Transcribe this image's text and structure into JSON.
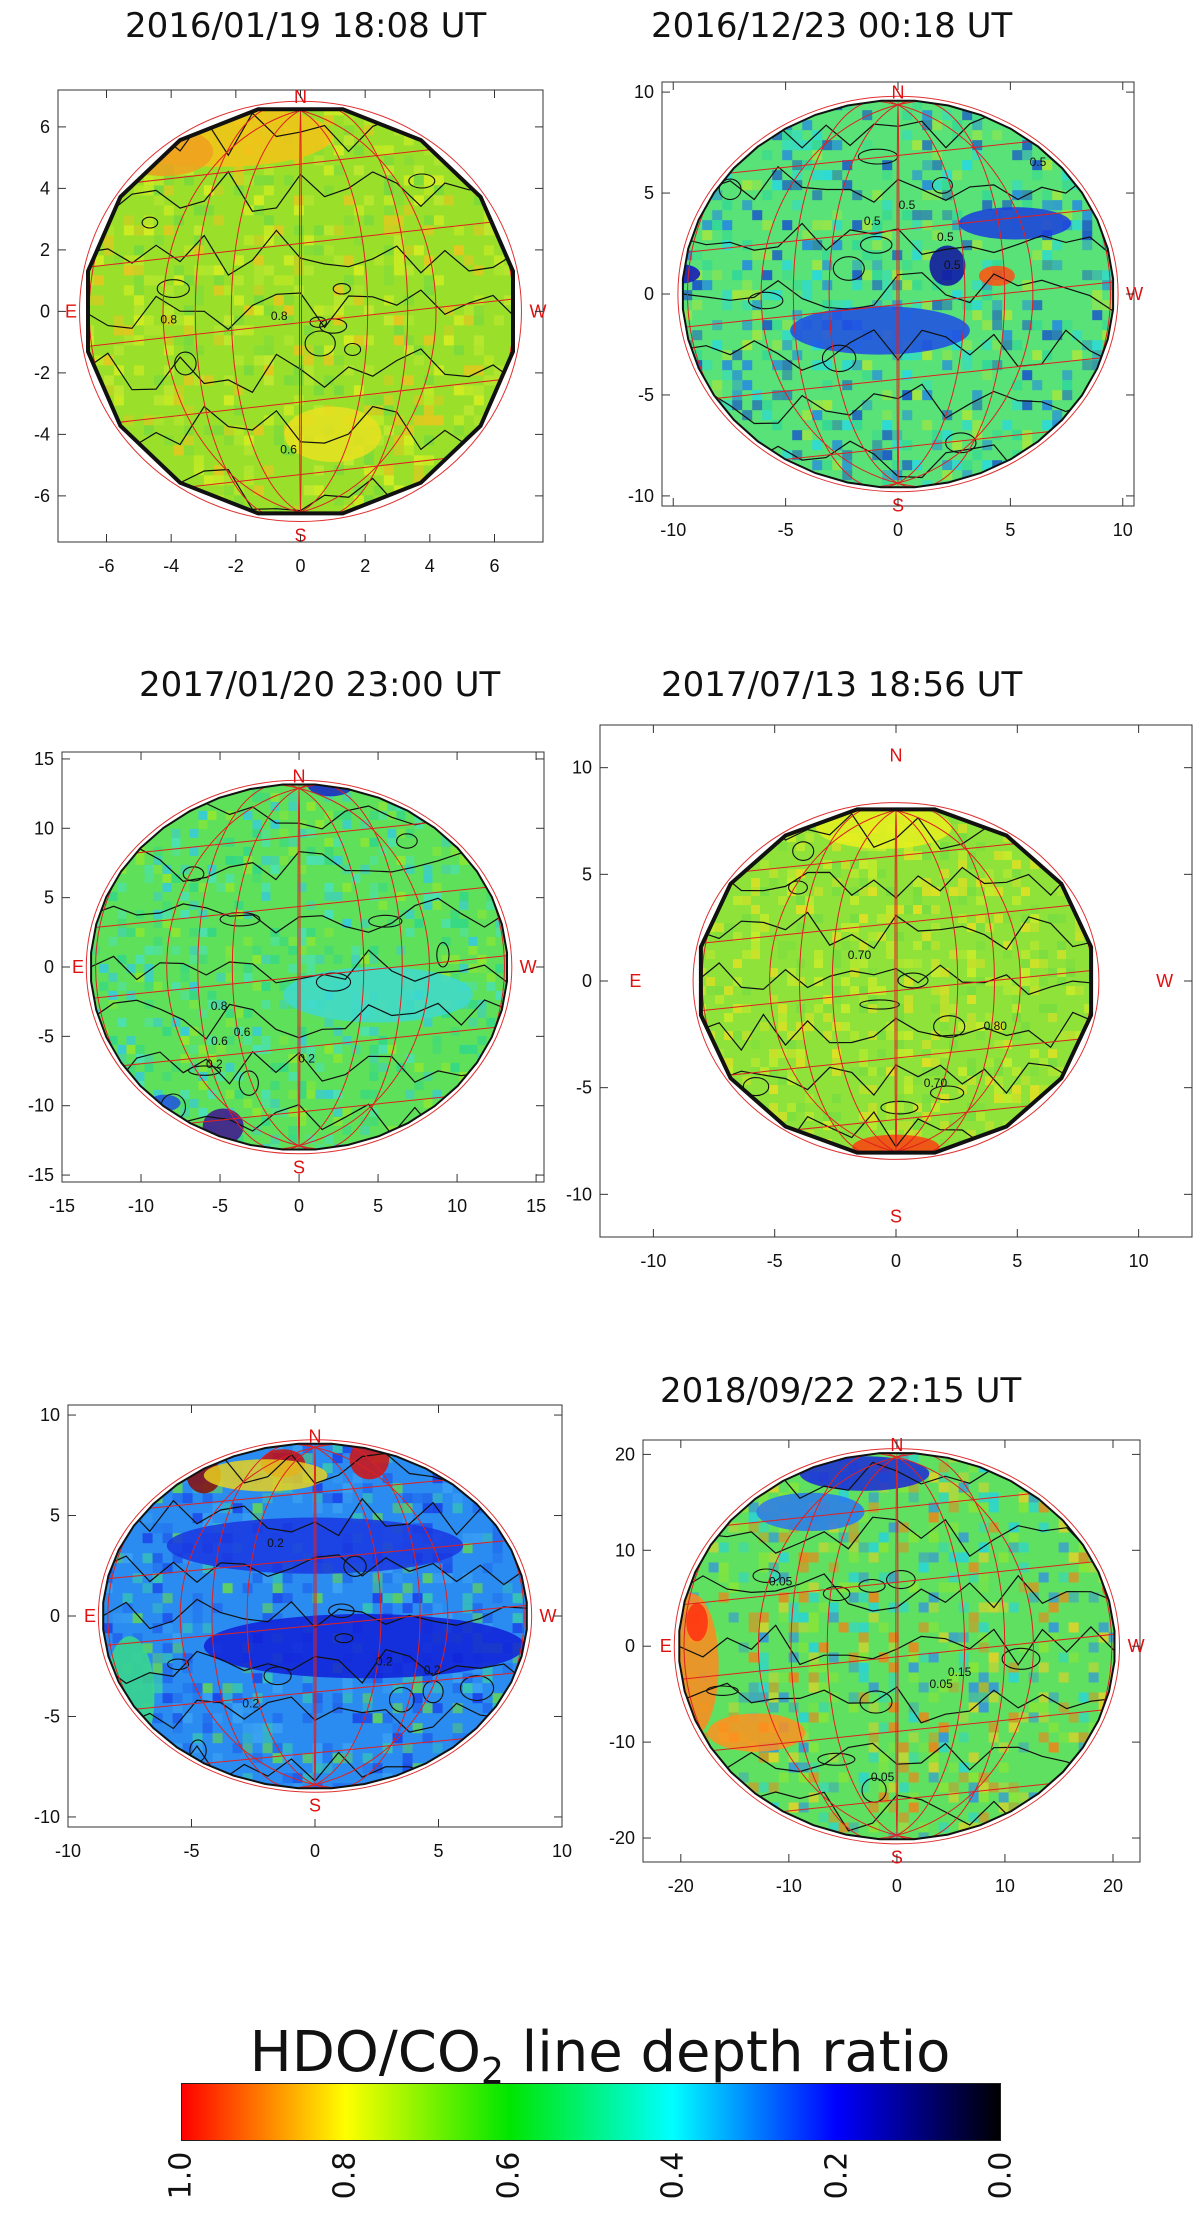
{
  "figure": {
    "colorbar": {
      "title_main": "HDO/CO",
      "title_sub": "2",
      "title_rest": " line depth ratio",
      "stops": [
        "#ff0000",
        "#ffff00",
        "#00e600",
        "#00ffff",
        "#0000ff",
        "#000000"
      ],
      "ticks": [
        "1.0",
        "0.8",
        "0.6",
        "0.4",
        "0.2",
        "0.0"
      ]
    },
    "panel_titles": {
      "p1": "2016/01/19  18:08 UT",
      "p2": "2016/12/23  00:18 UT",
      "p3": "2017/01/20  23:00 UT",
      "p4": "2017/07/13  18:56 UT",
      "p6": "2018/09/22  22:15 UT"
    }
  },
  "chart_data": [
    {
      "type": "heatmap",
      "title": "2016/01/19  18:08 UT",
      "xlim": [
        -7.5,
        7.5
      ],
      "ylim": [
        -7.5,
        7.2
      ],
      "xticks": [
        -6,
        -4,
        -2,
        0,
        2,
        4,
        6
      ],
      "yticks": [
        -6,
        -4,
        -2,
        0,
        2,
        4,
        6
      ],
      "disk_radius": 6.7,
      "base_color": "#9ae02b",
      "compass": {
        "N": "N",
        "S": "S",
        "E": "E",
        "W": "W"
      },
      "contour_labels": [
        "0.6",
        "0.8",
        "0.8"
      ]
    },
    {
      "type": "heatmap",
      "title": "2016/12/23  00:18 UT",
      "xlim": [
        -10.5,
        10.5
      ],
      "ylim": [
        -10.5,
        10.5
      ],
      "xticks": [
        -10,
        -5,
        0,
        5,
        10
      ],
      "yticks": [
        -10,
        -5,
        0,
        5,
        10
      ],
      "disk_radius": 9.6,
      "base_color": "#58e278",
      "compass": {
        "N": "N",
        "S": "S",
        "E": "",
        "W": "W"
      },
      "contour_labels": [
        "0.5",
        "0.5",
        "0.5",
        "0.5",
        "0.5"
      ]
    },
    {
      "type": "heatmap",
      "title": "2017/01/20  23:00 UT",
      "xlim": [
        -15,
        15.5
      ],
      "ylim": [
        -15.5,
        15.5
      ],
      "xticks": [
        -15,
        -10,
        -5,
        0,
        5,
        10,
        15
      ],
      "yticks": [
        -15,
        -10,
        -5,
        0,
        5,
        10,
        15
      ],
      "disk_radius": 13.2,
      "base_color": "#5fe05a",
      "compass": {
        "N": "N",
        "S": "S",
        "E": "E",
        "W": "W"
      },
      "contour_labels": [
        "0.2",
        "0.6",
        "0.8",
        "0.6",
        "0.2"
      ]
    },
    {
      "type": "heatmap",
      "title": "2017/07/13  18:56 UT",
      "xlim": [
        -12.2,
        12.2
      ],
      "ylim": [
        -12,
        12
      ],
      "xticks": [
        -10,
        -5,
        0,
        5,
        10
      ],
      "yticks": [
        -10,
        -5,
        0,
        5,
        10
      ],
      "disk_radius": 8.2,
      "base_color": "#8ee23a",
      "compass": {
        "N": "N",
        "S": "S",
        "E": "E",
        "W": "W"
      },
      "contour_labels": [
        "0.70",
        "0.70",
        "0.80"
      ]
    },
    {
      "type": "heatmap",
      "title": "",
      "xlim": [
        -10,
        10
      ],
      "ylim": [
        -10.5,
        10.5
      ],
      "xticks": [
        -10,
        -5,
        0,
        5,
        10
      ],
      "yticks": [
        -10,
        -5,
        0,
        5,
        10
      ],
      "disk_radius": 8.6,
      "base_color": "#2a8cf0",
      "compass": {
        "N": "N",
        "S": "S",
        "E": "E",
        "W": "W"
      },
      "contour_labels": [
        "0.2",
        "0.2",
        "0.2",
        "0.2"
      ]
    },
    {
      "type": "heatmap",
      "title": "2018/09/22  22:15 UT",
      "xlim": [
        -23.5,
        22.5
      ],
      "ylim": [
        -22.5,
        21.5
      ],
      "xticks": [
        -20,
        -10,
        0,
        10,
        20
      ],
      "yticks": [
        -20,
        -10,
        0,
        10,
        20
      ],
      "disk_radius": 20.2,
      "base_color": "#60e060",
      "compass": {
        "N": "N",
        "S": "S",
        "E": "E",
        "W": "W"
      },
      "contour_labels": [
        "0.05",
        "0.05",
        "0.15",
        "0.05"
      ]
    }
  ]
}
